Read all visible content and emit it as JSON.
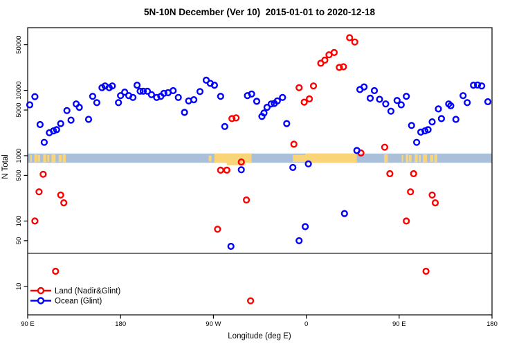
{
  "title": "5N-10N December (Ver 10)  2015-01-01 to 2020-12-18",
  "chart_data": {
    "type": "scatter",
    "xlabel": "Longitude (deg E)",
    "ylabel": "N Total",
    "x_domain": [
      90,
      540
    ],
    "x_ticks": [
      {
        "v": 90,
        "label": "90 E"
      },
      {
        "v": 180,
        "label": "180"
      },
      {
        "v": 270,
        "label": "90 W"
      },
      {
        "v": 360,
        "label": "0"
      },
      {
        "v": 450,
        "label": "90 E"
      },
      {
        "v": 540,
        "label": "180"
      }
    ],
    "y_scale": "log10",
    "y_domain": [
      4,
      90000
    ],
    "y_ticks": [
      {
        "v": 10,
        "label": "10"
      },
      {
        "v": 50,
        "label": "50"
      },
      {
        "v": 100,
        "label": "100"
      },
      {
        "v": 500,
        "label": "500"
      },
      {
        "v": 1000,
        "label": "1000"
      },
      {
        "v": 5000,
        "label": "5000"
      },
      {
        "v": 10000,
        "label": "10000"
      },
      {
        "v": 50000,
        "label": "50000"
      }
    ],
    "grid": false,
    "legend_position": "bottom-left",
    "cutoff_line_n": 32,
    "map_strip": {
      "n_range": [
        780,
        1080
      ],
      "ocean_color": "#A9BFDA",
      "land_color": "#F9D478",
      "land_segments": [
        [
          92.5,
          94,
          2
        ],
        [
          96.5,
          99,
          1
        ],
        [
          99.5,
          102,
          2
        ],
        [
          105,
          108,
          1
        ],
        [
          109,
          111,
          2
        ],
        [
          113,
          117,
          1
        ],
        [
          120,
          123,
          2
        ],
        [
          124,
          127,
          1
        ],
        [
          265.5,
          268,
          3
        ],
        [
          271,
          307,
          0
        ],
        [
          347,
          360,
          2
        ],
        [
          359,
          409,
          0
        ],
        [
          435.5,
          439,
          1
        ],
        [
          452.5,
          454,
          2
        ],
        [
          456.5,
          459,
          1
        ],
        [
          459.5,
          462,
          2
        ],
        [
          465,
          468,
          1
        ],
        [
          469,
          471,
          2
        ],
        [
          473,
          477,
          1
        ],
        [
          480,
          483,
          2
        ],
        [
          484,
          487,
          1
        ]
      ],
      "land_bump_below": [
        283,
        301
      ]
    },
    "series": [
      {
        "name": "Land (Nadir&Glint)",
        "color": "#FF0000",
        "points": [
          [
            97,
            100
          ],
          [
            101,
            280
          ],
          [
            105,
            520
          ],
          [
            117,
            17
          ],
          [
            122,
            250
          ],
          [
            125,
            190
          ],
          [
            274,
            75
          ],
          [
            277,
            600
          ],
          [
            283,
            600
          ],
          [
            288,
            3700
          ],
          [
            292,
            3800
          ],
          [
            297,
            800
          ],
          [
            302,
            210
          ],
          [
            306,
            6
          ],
          [
            348,
            1500
          ],
          [
            353,
            11000
          ],
          [
            358,
            6600
          ],
          [
            363,
            7400
          ],
          [
            367,
            11700
          ],
          [
            374,
            26000
          ],
          [
            378,
            29000
          ],
          [
            382,
            35000
          ],
          [
            387,
            38000
          ],
          [
            392,
            22500
          ],
          [
            396,
            23000
          ],
          [
            402,
            64000
          ],
          [
            407,
            55000
          ],
          [
            413,
            1100
          ],
          [
            436,
            1350
          ],
          [
            441,
            530
          ],
          [
            457,
            100
          ],
          [
            461,
            280
          ],
          [
            464,
            530
          ],
          [
            476,
            17
          ],
          [
            482,
            250
          ],
          [
            485,
            190
          ]
        ]
      },
      {
        "name": "Ocean (Glint)",
        "color": "#0000FF",
        "points": [
          [
            92,
            6000
          ],
          [
            97,
            8000
          ],
          [
            102,
            3000
          ],
          [
            106,
            1600
          ],
          [
            111,
            2250
          ],
          [
            115,
            2400
          ],
          [
            118,
            2500
          ],
          [
            122,
            3100
          ],
          [
            128,
            4900
          ],
          [
            132,
            3500
          ],
          [
            137,
            6200
          ],
          [
            140,
            5500
          ],
          [
            149,
            3600
          ],
          [
            153,
            8100
          ],
          [
            157,
            6500
          ],
          [
            162,
            11000
          ],
          [
            165,
            11700
          ],
          [
            169,
            11000
          ],
          [
            172,
            11700
          ],
          [
            178,
            6500
          ],
          [
            180,
            8300
          ],
          [
            184,
            9400
          ],
          [
            188,
            8300
          ],
          [
            192,
            7800
          ],
          [
            196,
            12000
          ],
          [
            199,
            9700
          ],
          [
            202,
            9700
          ],
          [
            206,
            9700
          ],
          [
            210,
            8600
          ],
          [
            215,
            7800
          ],
          [
            219,
            8100
          ],
          [
            222,
            9000
          ],
          [
            226,
            9200
          ],
          [
            231,
            9900
          ],
          [
            236,
            7800
          ],
          [
            242,
            4600
          ],
          [
            246,
            6900
          ],
          [
            251,
            7200
          ],
          [
            257,
            9600
          ],
          [
            263,
            14300
          ],
          [
            267,
            12800
          ],
          [
            271,
            12000
          ],
          [
            277,
            8100
          ],
          [
            281,
            2800
          ],
          [
            287,
            41
          ],
          [
            297,
            610
          ],
          [
            303,
            8300
          ],
          [
            307,
            8800
          ],
          [
            312,
            6800
          ],
          [
            317,
            4000
          ],
          [
            319,
            4500
          ],
          [
            322,
            5500
          ],
          [
            326,
            6200
          ],
          [
            329,
            6300
          ],
          [
            332,
            6900
          ],
          [
            337,
            7800
          ],
          [
            341,
            3100
          ],
          [
            347,
            660
          ],
          [
            353,
            50
          ],
          [
            359,
            82
          ],
          [
            362,
            750
          ],
          [
            397,
            130
          ],
          [
            409,
            1200
          ],
          [
            412,
            10300
          ],
          [
            416,
            11300
          ],
          [
            422,
            7600
          ],
          [
            426,
            9900
          ],
          [
            431,
            7300
          ],
          [
            437,
            6200
          ],
          [
            442,
            4800
          ],
          [
            448,
            7000
          ],
          [
            452,
            6000
          ],
          [
            457,
            8100
          ],
          [
            462,
            2900
          ],
          [
            467,
            1600
          ],
          [
            471,
            2300
          ],
          [
            475,
            2400
          ],
          [
            478,
            2500
          ],
          [
            482,
            3300
          ],
          [
            488,
            5200
          ],
          [
            491,
            3700
          ],
          [
            498,
            6200
          ],
          [
            500,
            5800
          ],
          [
            505,
            3600
          ],
          [
            512,
            8300
          ],
          [
            516,
            6500
          ],
          [
            522,
            12000
          ],
          [
            526,
            12100
          ],
          [
            530,
            11700
          ],
          [
            536,
            6700
          ]
        ]
      }
    ]
  }
}
